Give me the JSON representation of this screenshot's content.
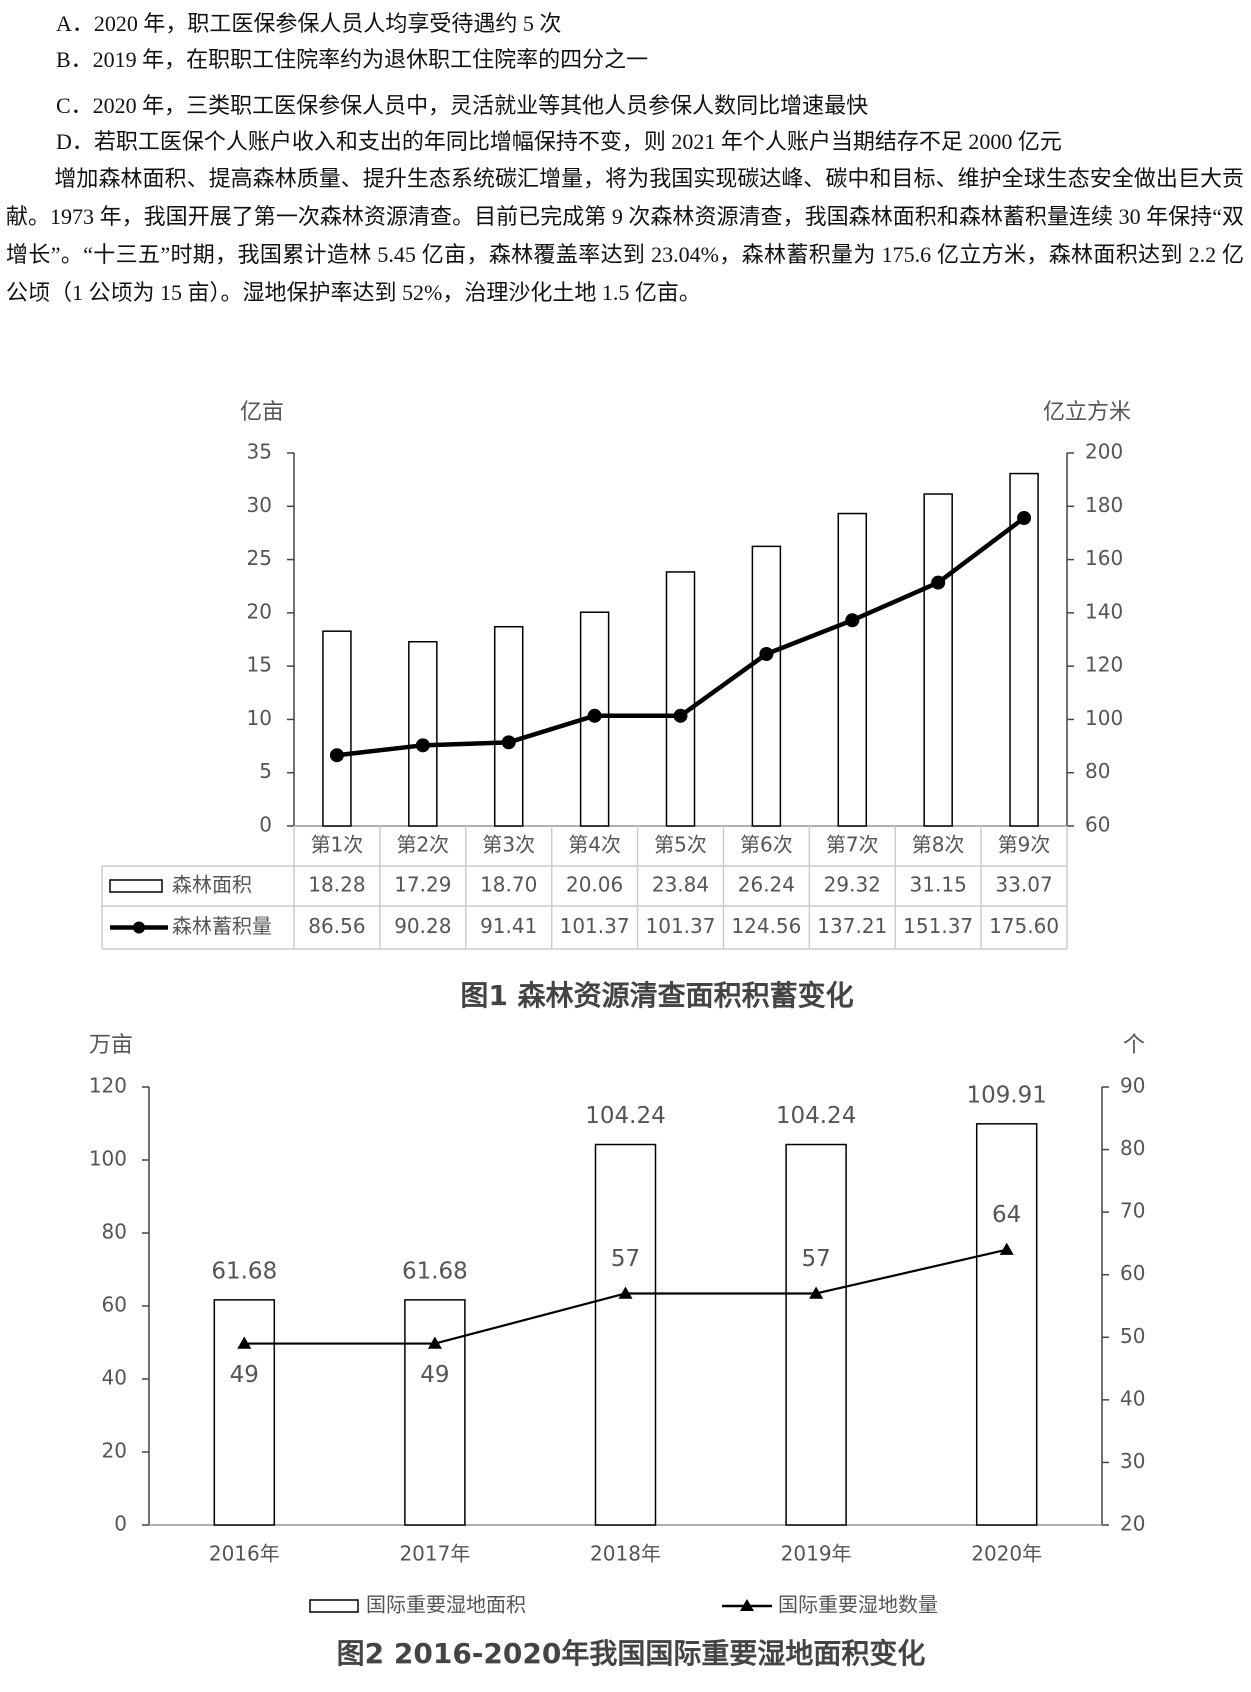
{
  "document": {
    "options": [
      "A．2020 年，职工医保参保人员人均享受待遇约 5 次",
      "B．2019 年，在职职工住院率约为退休职工住院率的四分之一",
      "C．2020 年，三类职工医保参保人员中，灵活就业等其他人员参保人数同比增速最快",
      "D．若职工医保个人账户收入和支出的年同比增幅保持不变，则 2021 年个人账户当期结存不足 2000 亿元"
    ],
    "paragraph": "增加森林面积、提高森林质量、提升生态系统碳汇增量，将为我国实现碳达峰、碳中和目标、维护全球生态安全做出巨大贡献。1973 年，我国开展了第一次森林资源清查。目前已完成第 9 次森林资源清查，我国森林面积和森林蓄积量连续 30 年保持“双增长”。“十三五”时期，我国累计造林 5.45 亿亩，森林覆盖率达到 23.04%，森林蓄积量为 175.6 亿立方米，森林面积达到 2.2 亿公顷（1 公顷为 15 亩）。湿地保护率达到 52%，治理沙化土地 1.5 亿亩。"
  },
  "chart_data": [
    {
      "type": "bar_line",
      "title": "图1 森林资源清查面积积蓄变化",
      "y_label": "亿亩",
      "y2_label": "亿立方米",
      "categories": [
        "第1次",
        "第2次",
        "第3次",
        "第4次",
        "第5次",
        "第6次",
        "第7次",
        "第8次",
        "第9次"
      ],
      "series": [
        {
          "name": "森林面积",
          "type": "bar",
          "color": "#000000",
          "values": [
            18.28,
            17.29,
            18.7,
            20.06,
            23.84,
            26.24,
            29.32,
            31.15,
            33.07
          ],
          "value_labels": [
            "18.28",
            "17.29",
            "18.70",
            "20.06",
            "23.84",
            "26.24",
            "29.32",
            "31.15",
            "33.07"
          ]
        },
        {
          "name": "森林蓄积量",
          "type": "line",
          "axis": "y2",
          "marker": "circle",
          "color": "#000000",
          "values": [
            86.56,
            90.28,
            91.41,
            101.37,
            101.37,
            124.56,
            137.21,
            151.37,
            175.6
          ],
          "value_labels": [
            "86.56",
            "90.28",
            "91.41",
            "101.37",
            "101.37",
            "124.56",
            "137.21",
            "151.37",
            "175.60"
          ]
        }
      ],
      "ylim": [
        0,
        35
      ],
      "yticks": [
        0,
        5,
        10,
        15,
        20,
        25,
        30,
        35
      ],
      "y2lim": [
        60,
        200
      ],
      "y2ticks": [
        60,
        80,
        100,
        120,
        140,
        160,
        180,
        200
      ],
      "data_table": true
    },
    {
      "type": "bar_line",
      "title": "图2 2016-2020年我国国际重要湿地面积变化",
      "y_label": "万亩",
      "y2_label": "个",
      "categories": [
        "2016年",
        "2017年",
        "2018年",
        "2019年",
        "2020年"
      ],
      "series": [
        {
          "name": "国际重要湿地面积",
          "type": "bar",
          "color": "#000000",
          "values": [
            61.68,
            61.68,
            104.24,
            104.24,
            109.91
          ]
        },
        {
          "name": "国际重要湿地数量",
          "type": "line",
          "axis": "y2",
          "marker": "triangle",
          "color": "#000000",
          "values": [
            49,
            49,
            57,
            57,
            64
          ]
        }
      ],
      "ylim": [
        0,
        120
      ],
      "yticks": [
        0,
        20,
        40,
        60,
        80,
        100,
        120
      ],
      "y2lim": [
        20,
        90
      ],
      "y2ticks": [
        20,
        30,
        40,
        50,
        60,
        70,
        80,
        90
      ],
      "data_labels": true,
      "legend": "bottom"
    }
  ]
}
